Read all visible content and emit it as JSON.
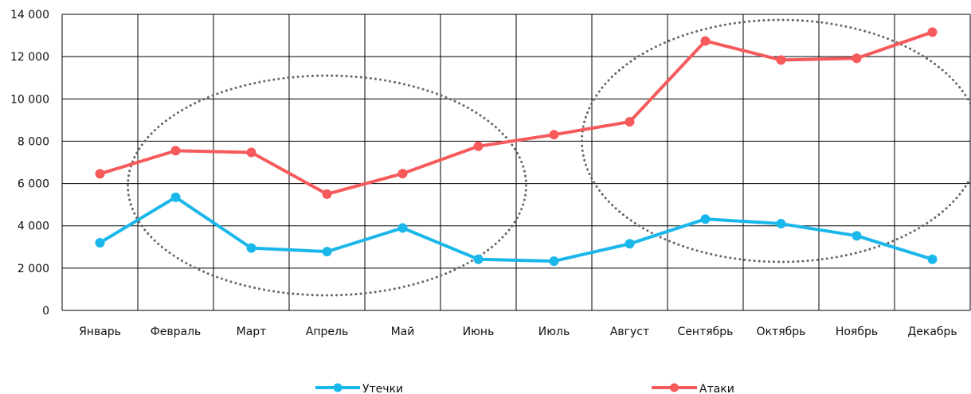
{
  "chart_data": {
    "type": "line",
    "title": "",
    "xlabel": "",
    "ylabel": "",
    "categories": [
      "Январь",
      "Февраль",
      "Март",
      "Апрель",
      "Май",
      "Июнь",
      "Июль",
      "Август",
      "Сентябрь",
      "Октябрь",
      "Ноябрь",
      "Декабрь"
    ],
    "y_ticks": [
      "0",
      "2 000",
      "4 000",
      "6 000",
      "8 000",
      "10 000",
      "12 000",
      "14 000"
    ],
    "ylim": [
      0,
      14000
    ],
    "grid": true,
    "legend_position": "bottom",
    "series": [
      {
        "name": "Утечки",
        "color": "#1ab7ea",
        "values": [
          3200,
          5350,
          2950,
          2780,
          3900,
          2420,
          2330,
          3150,
          4320,
          4100,
          3530,
          2420
        ]
      },
      {
        "name": "Атаки",
        "color": "#f65a5b",
        "values": [
          6460,
          7550,
          7470,
          5500,
          6470,
          7760,
          8310,
          8920,
          12740,
          11840,
          11920,
          13160
        ]
      }
    ],
    "annotations": [
      {
        "type": "dotted-ellipse",
        "spans": [
          "Февраль",
          "Июнь"
        ],
        "color": "#666666"
      },
      {
        "type": "dotted-ellipse",
        "spans": [
          "Август",
          "Декабрь"
        ],
        "color": "#666666"
      }
    ]
  }
}
